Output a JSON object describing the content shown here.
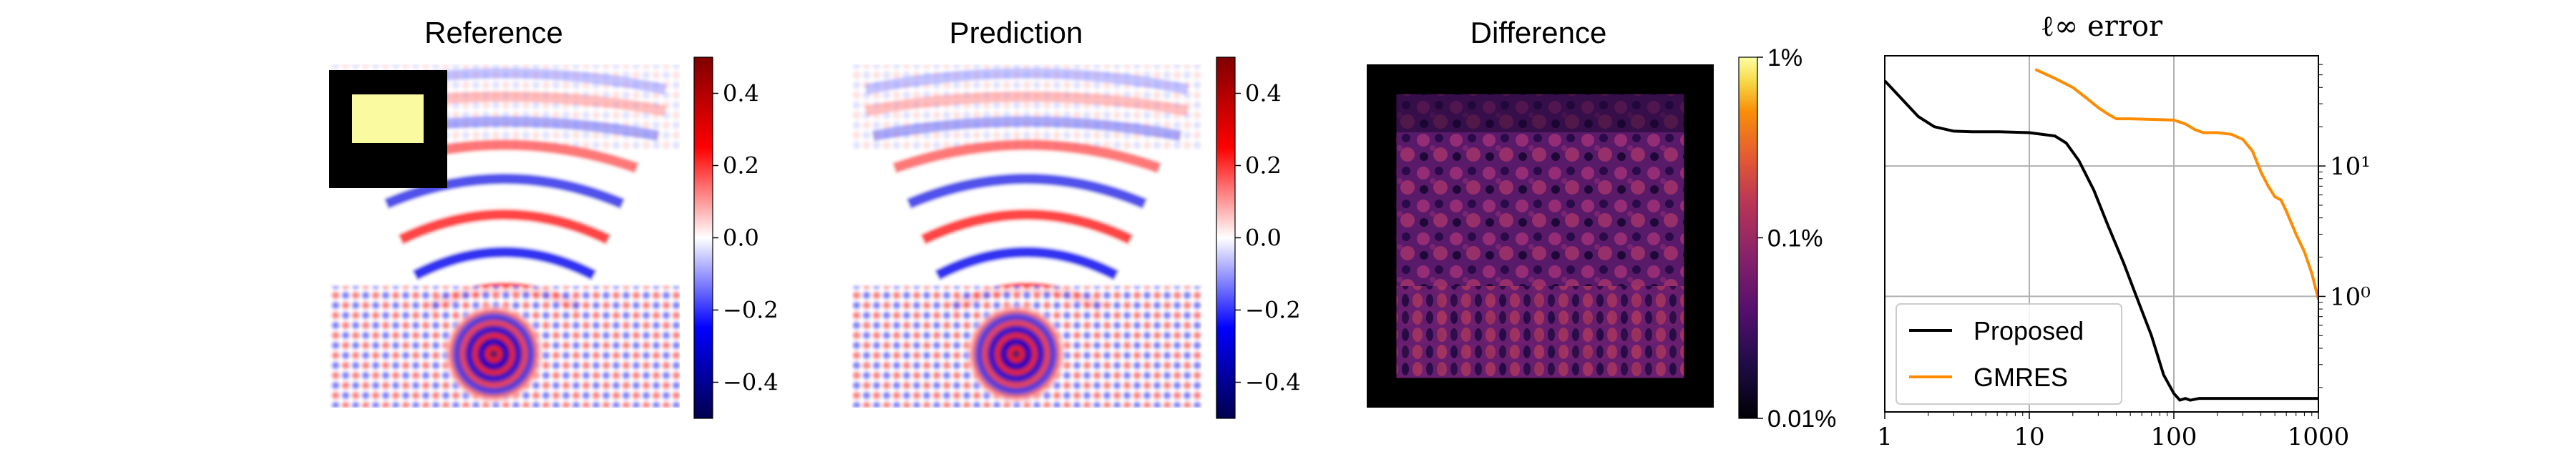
{
  "panels": [
    {
      "title": "Reference"
    },
    {
      "title": "Prediction"
    },
    {
      "title": "Difference"
    }
  ],
  "colorbar_field": {
    "ticks": [
      "0.4",
      "0.2",
      "0.0",
      "−0.2",
      "−0.4"
    ],
    "tick_values": [
      0.4,
      0.2,
      0.0,
      -0.2,
      -0.4
    ],
    "range": [
      -0.5,
      0.5
    ],
    "colormap": "seismic",
    "colors": {
      "low": "#00004d",
      "mid": "#ffffff",
      "high": "#800000"
    }
  },
  "colorbar_diff": {
    "ticks": [
      "1%",
      "0.1%",
      "0.01%"
    ],
    "tick_values": [
      0.01,
      0.001,
      0.0001
    ],
    "scale": "log",
    "colormap": "inferno"
  },
  "chart_data": {
    "type": "line",
    "title": "ℓ∞ error",
    "xscale": "log",
    "yscale": "log",
    "xlim": [
      1,
      1000
    ],
    "ylim": [
      0.13,
      70
    ],
    "xticks": [
      "1",
      "10",
      "100",
      "1000"
    ],
    "xtick_values": [
      1,
      10,
      100,
      1000
    ],
    "yticks": [
      "10¹",
      "10⁰"
    ],
    "ytick_values": [
      10,
      1
    ],
    "grid": true,
    "legend_position": "lower-left",
    "y_axis_side": "right",
    "series": [
      {
        "name": "Proposed",
        "color": "#000000",
        "x": [
          1,
          1.3,
          1.7,
          2.2,
          3,
          4,
          6,
          10,
          15,
          18,
          22,
          28,
          35,
          45,
          55,
          70,
          85,
          100,
          110,
          120,
          130,
          150,
          200,
          300,
          500,
          1000
        ],
        "y": [
          45,
          33,
          24,
          20,
          18.5,
          18.3,
          18.3,
          18,
          17,
          15,
          11,
          6.5,
          3.5,
          1.8,
          1.0,
          0.5,
          0.25,
          0.18,
          0.16,
          0.165,
          0.16,
          0.165,
          0.165,
          0.165,
          0.165,
          0.165
        ]
      },
      {
        "name": "GMRES",
        "color": "#ff8c00",
        "x": [
          11,
          15,
          20,
          25,
          30,
          35,
          40,
          50,
          100,
          120,
          140,
          160,
          200,
          250,
          300,
          350,
          400,
          450,
          500,
          550,
          600,
          700,
          800,
          900,
          1000
        ],
        "y": [
          55,
          47,
          40,
          33,
          28,
          25,
          23,
          23,
          22.5,
          21,
          19,
          18,
          18,
          17.5,
          16,
          13,
          9,
          7,
          5.8,
          5.5,
          4.5,
          3,
          2.2,
          1.5,
          0.95
        ]
      }
    ]
  }
}
